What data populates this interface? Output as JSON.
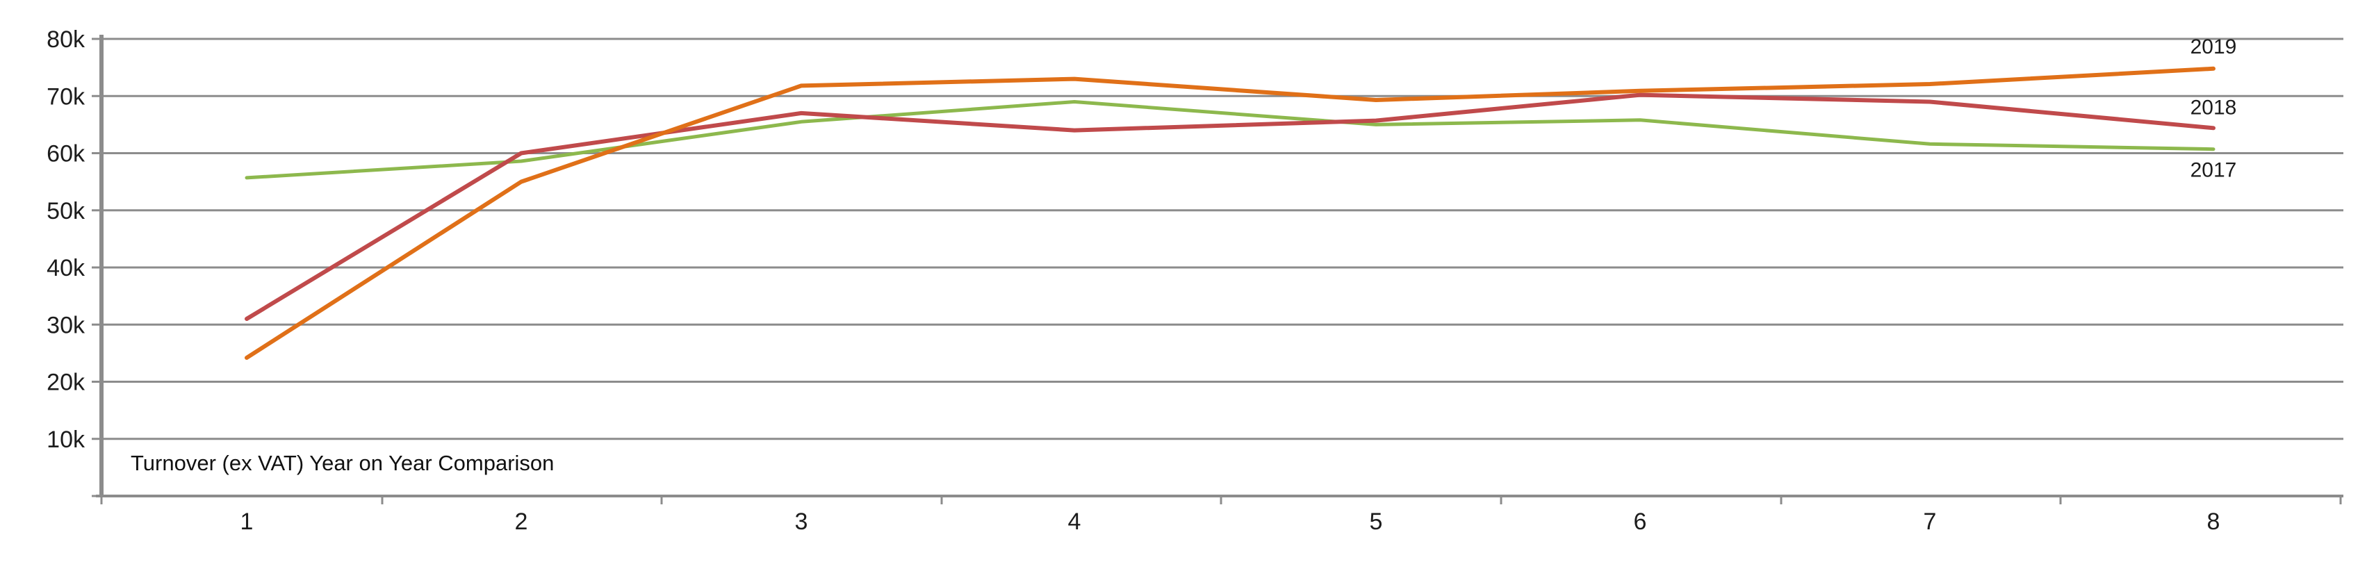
{
  "chart_data": {
    "type": "line",
    "title": "Turnover (ex VAT) Year on Year Comparison",
    "xlabel": "",
    "ylabel": "",
    "categories": [
      "1",
      "2",
      "3",
      "4",
      "5",
      "6",
      "7",
      "8"
    ],
    "ylim": [
      0,
      80000
    ],
    "y_ticks": [
      10000,
      20000,
      30000,
      40000,
      50000,
      60000,
      70000,
      80000
    ],
    "y_tick_labels": [
      "10k",
      "20k",
      "30k",
      "40k",
      "50k",
      "60k",
      "70k",
      "80k"
    ],
    "grid": true,
    "legend": "series labels at right end of lines",
    "series": [
      {
        "name": "2017",
        "color": "#8db84d",
        "values": [
          55700,
          58600,
          65500,
          69000,
          65000,
          65800,
          61600,
          60700
        ]
      },
      {
        "name": "2018",
        "color": "#c04a4b",
        "values": [
          31000,
          60000,
          67000,
          64000,
          65700,
          70200,
          69000,
          64400
        ]
      },
      {
        "name": "2019",
        "color": "#e07018",
        "values": [
          24200,
          55000,
          71800,
          73000,
          69300,
          70900,
          72100,
          74800
        ]
      }
    ]
  }
}
